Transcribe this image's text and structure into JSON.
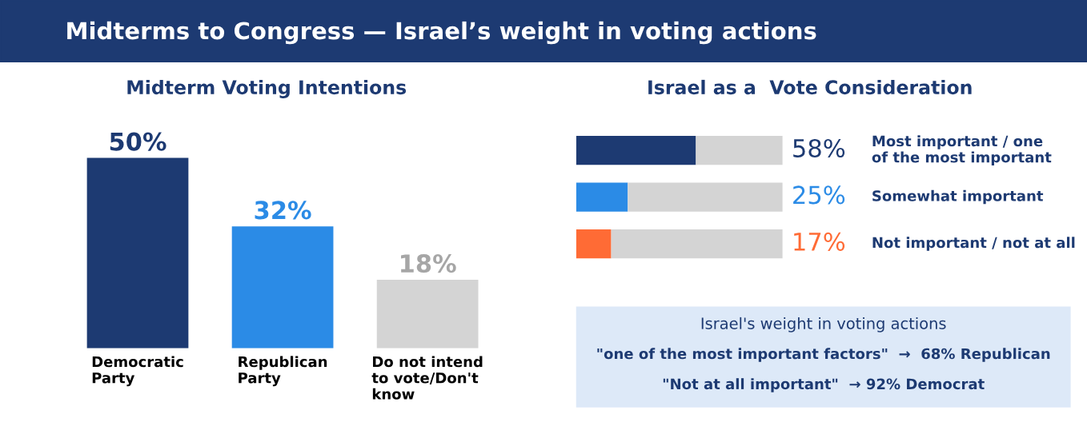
{
  "chart_data": [
    {
      "type": "bar",
      "title": "Midterms to Congress — Israel’s weight in voting actions",
      "subtitle": "Midterm Voting Intentions",
      "categories": [
        "Democratic\nParty",
        "Republican\nParty",
        "Do not intend\nto vote/Don't\nknow"
      ],
      "values": [
        50,
        32,
        18
      ],
      "colors": [
        "#1d3a72",
        "#2b8be6",
        "#d4d4d4"
      ],
      "value_labels": [
        "50%",
        "32%",
        "18%"
      ]
    },
    {
      "type": "bar",
      "orientation": "horizontal",
      "stacked": true,
      "title": "Israel as a  Vote Consideration",
      "categories": [
        "Most important / one\nof the most important",
        "Somewhat important",
        "Not important / not at all"
      ],
      "xlim": [
        0,
        100
      ],
      "series": [
        {
          "colors": [
            "#1d3a72",
            "#2b8be6",
            "#ff6b35"
          ],
          "values": [
            58,
            25,
            17
          ],
          "value_labels": [
            "58%",
            "25%",
            "17%"
          ]
        },
        {
          "color": "#d4d4d4",
          "values": [
            42,
            75,
            83
          ]
        }
      ]
    },
    {
      "type": "other",
      "title": "Israel's weight in voting actions",
      "annotations": [
        "\"one of the most important factors\"  →  68% Republican",
        "\"Not at all important\"  → 92% Democrat"
      ]
    }
  ]
}
